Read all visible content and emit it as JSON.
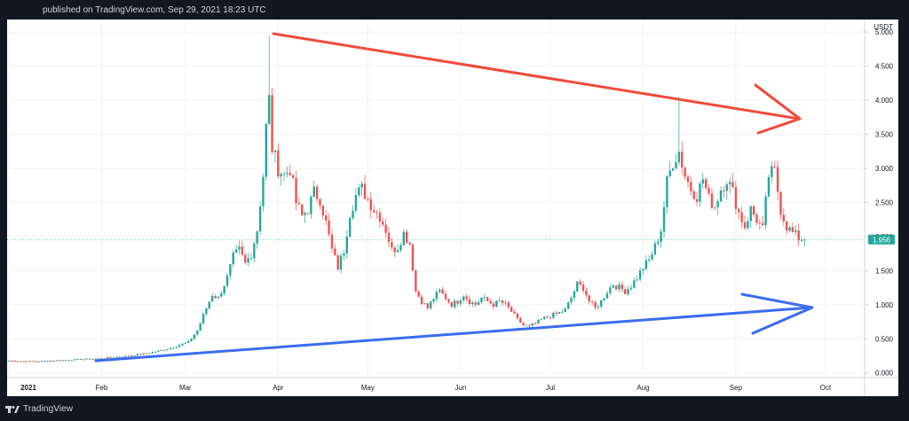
{
  "header": {
    "published_text": "published on TradingView.com, Sep 29, 2021 18:23 UTC"
  },
  "footer": {
    "brand": "TradingView",
    "logo_icon": "tradingview-logo-icon"
  },
  "chart_data": {
    "type": "candlestick",
    "currency_label": "USDT",
    "price_axis": {
      "min": 0,
      "max": 5,
      "ticks": [
        0,
        0.5,
        1,
        1.5,
        2,
        2.5,
        3,
        3.5,
        4,
        4.5,
        5
      ],
      "tick_labels": [
        "0.000",
        "0.500",
        "1.000",
        "1.500",
        "2.000",
        "2.500",
        "3.000",
        "3.500",
        "4.000",
        "4.500",
        "5.000"
      ]
    },
    "time_axis": {
      "labels": [
        "2021",
        "Feb",
        "Mar",
        "Apr",
        "May",
        "Jun",
        "Jul",
        "Aug",
        "Sep",
        "Oct"
      ],
      "label_days": [
        0,
        31,
        59,
        90,
        120,
        151,
        181,
        212,
        243,
        273
      ]
    },
    "last_price": {
      "value": 1.956,
      "label": "1.956"
    },
    "colors": {
      "up": "#26a69a",
      "down": "#ef5350",
      "red_line": "#f14a3a",
      "blue_line": "#3b6cf0",
      "last_price": "#26a69a"
    },
    "anchors": [
      [
        0,
        0.18
      ],
      [
        5,
        0.17
      ],
      [
        10,
        0.17
      ],
      [
        15,
        0.18
      ],
      [
        20,
        0.19
      ],
      [
        25,
        0.2
      ],
      [
        30,
        0.21
      ],
      [
        35,
        0.23
      ],
      [
        40,
        0.25
      ],
      [
        45,
        0.28
      ],
      [
        50,
        0.32
      ],
      [
        55,
        0.38
      ],
      [
        60,
        0.45
      ],
      [
        63,
        0.62
      ],
      [
        66,
        0.95
      ],
      [
        68,
        1.15
      ],
      [
        70,
        1.1
      ],
      [
        73,
        1.4
      ],
      [
        75,
        1.7
      ],
      [
        77,
        1.8
      ],
      [
        79,
        1.6
      ],
      [
        81,
        1.75
      ],
      [
        83,
        2.1
      ],
      [
        85,
        2.9
      ],
      [
        86,
        3.6
      ],
      [
        87,
        4.0
      ],
      [
        88,
        3.3
      ],
      [
        90,
        3.0
      ],
      [
        92,
        2.9
      ],
      [
        94,
        3.0
      ],
      [
        96,
        2.5
      ],
      [
        98,
        2.3
      ],
      [
        100,
        2.4
      ],
      [
        102,
        2.65
      ],
      [
        104,
        2.55
      ],
      [
        106,
        2.2
      ],
      [
        108,
        1.8
      ],
      [
        110,
        1.55
      ],
      [
        112,
        1.8
      ],
      [
        114,
        2.35
      ],
      [
        116,
        2.6
      ],
      [
        118,
        2.7
      ],
      [
        120,
        2.55
      ],
      [
        122,
        2.4
      ],
      [
        124,
        2.3
      ],
      [
        126,
        2.1
      ],
      [
        128,
        1.8
      ],
      [
        130,
        1.85
      ],
      [
        132,
        2.05
      ],
      [
        134,
        1.9
      ],
      [
        136,
        1.2
      ],
      [
        138,
        1.05
      ],
      [
        140,
        0.95
      ],
      [
        142,
        1.1
      ],
      [
        144,
        1.2
      ],
      [
        146,
        1.1
      ],
      [
        148,
        1.0
      ],
      [
        150,
        1.05
      ],
      [
        152,
        1.15
      ],
      [
        154,
        1.05
      ],
      [
        156,
        1.0
      ],
      [
        158,
        1.1
      ],
      [
        160,
        1.05
      ],
      [
        162,
        1.0
      ],
      [
        164,
        1.05
      ],
      [
        166,
        1.0
      ],
      [
        168,
        0.9
      ],
      [
        170,
        0.78
      ],
      [
        172,
        0.7
      ],
      [
        174,
        0.68
      ],
      [
        176,
        0.72
      ],
      [
        178,
        0.78
      ],
      [
        180,
        0.82
      ],
      [
        182,
        0.85
      ],
      [
        184,
        0.88
      ],
      [
        186,
        0.92
      ],
      [
        188,
        1.1
      ],
      [
        190,
        1.3
      ],
      [
        192,
        1.25
      ],
      [
        194,
        1.05
      ],
      [
        196,
        0.95
      ],
      [
        198,
        1.05
      ],
      [
        200,
        1.2
      ],
      [
        202,
        1.3
      ],
      [
        204,
        1.25
      ],
      [
        206,
        1.2
      ],
      [
        208,
        1.28
      ],
      [
        210,
        1.4
      ],
      [
        212,
        1.55
      ],
      [
        214,
        1.65
      ],
      [
        216,
        1.85
      ],
      [
        218,
        2.1
      ],
      [
        220,
        2.8
      ],
      [
        222,
        3.1
      ],
      [
        224,
        3.25
      ],
      [
        226,
        2.9
      ],
      [
        228,
        2.7
      ],
      [
        230,
        2.6
      ],
      [
        232,
        2.85
      ],
      [
        234,
        2.55
      ],
      [
        236,
        2.45
      ],
      [
        238,
        2.7
      ],
      [
        240,
        2.85
      ],
      [
        242,
        2.65
      ],
      [
        244,
        2.35
      ],
      [
        246,
        2.15
      ],
      [
        248,
        2.4
      ],
      [
        250,
        2.25
      ],
      [
        252,
        2.1
      ],
      [
        254,
        2.9
      ],
      [
        256,
        2.95
      ],
      [
        258,
        2.4
      ],
      [
        260,
        2.15
      ],
      [
        262,
        2.05
      ],
      [
        264,
        1.98
      ],
      [
        266,
        1.956
      ]
    ]
  }
}
